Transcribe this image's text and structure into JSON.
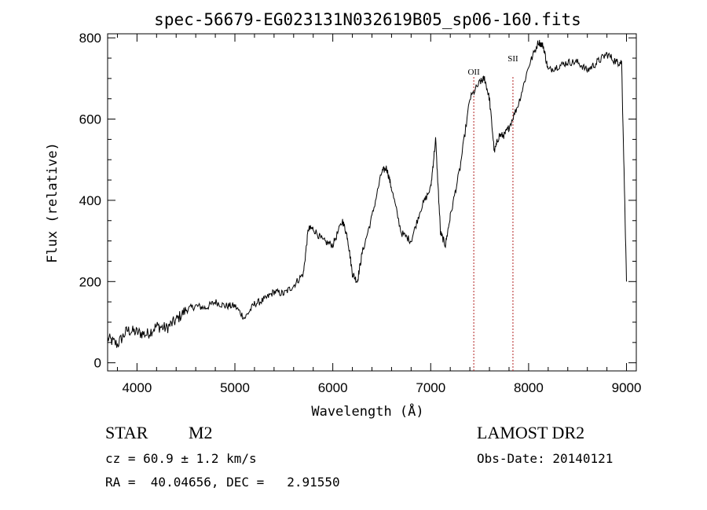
{
  "chart_data": {
    "type": "line",
    "title": "spec-56679-EG023131N032619B05_sp06-160.fits",
    "xlabel": "Wavelength (Å)",
    "ylabel": "Flux (relative)",
    "xlim": [
      3700,
      9100
    ],
    "ylim": [
      -20,
      810
    ],
    "xticks": [
      4000,
      5000,
      6000,
      7000,
      8000,
      9000
    ],
    "yticks": [
      0,
      200,
      400,
      600,
      800
    ],
    "grid": false,
    "series": [
      {
        "x": [
          3700,
          3800,
          3900,
          4000,
          4100,
          4200,
          4300,
          4400,
          4500,
          4600,
          4700,
          4800,
          4900,
          5000,
          5100,
          5200,
          5300,
          5400,
          5500,
          5600,
          5700,
          5750,
          5800,
          5900,
          6000,
          6100,
          6150,
          6200,
          6250,
          6300,
          6400,
          6500,
          6550,
          6600,
          6700,
          6800,
          6900,
          7000,
          7050,
          7100,
          7150,
          7200,
          7300,
          7400,
          7500,
          7550,
          7600,
          7650,
          7700,
          7750,
          7800,
          7900,
          8000,
          8100,
          8150,
          8200,
          8300,
          8400,
          8500,
          8600,
          8700,
          8800,
          8900,
          8950,
          9000
        ],
        "values": [
          60,
          45,
          80,
          75,
          70,
          90,
          85,
          105,
          130,
          140,
          135,
          150,
          140,
          140,
          110,
          145,
          155,
          175,
          170,
          190,
          220,
          330,
          330,
          300,
          290,
          350,
          310,
          220,
          200,
          270,
          360,
          470,
          480,
          430,
          320,
          300,
          380,
          430,
          550,
          320,
          290,
          360,
          480,
          650,
          690,
          700,
          650,
          520,
          560,
          560,
          580,
          640,
          730,
          790,
          780,
          720,
          730,
          740,
          740,
          720,
          740,
          760,
          740,
          740,
          200
        ]
      }
    ],
    "annotations": [
      {
        "label": "OII",
        "x": 7440
      },
      {
        "label": "SII",
        "x": 7840
      }
    ],
    "line_color": "#000000",
    "marker_color": "#b22222"
  },
  "info": {
    "object_class": "STAR",
    "subclass": "M2",
    "survey": "LAMOST DR2",
    "cz": "cz = 60.9 ± 1.2 km/s",
    "obs_date": "Obs-Date: 20140121",
    "coords": "RA =  40.04656, DEC =   2.91550"
  }
}
